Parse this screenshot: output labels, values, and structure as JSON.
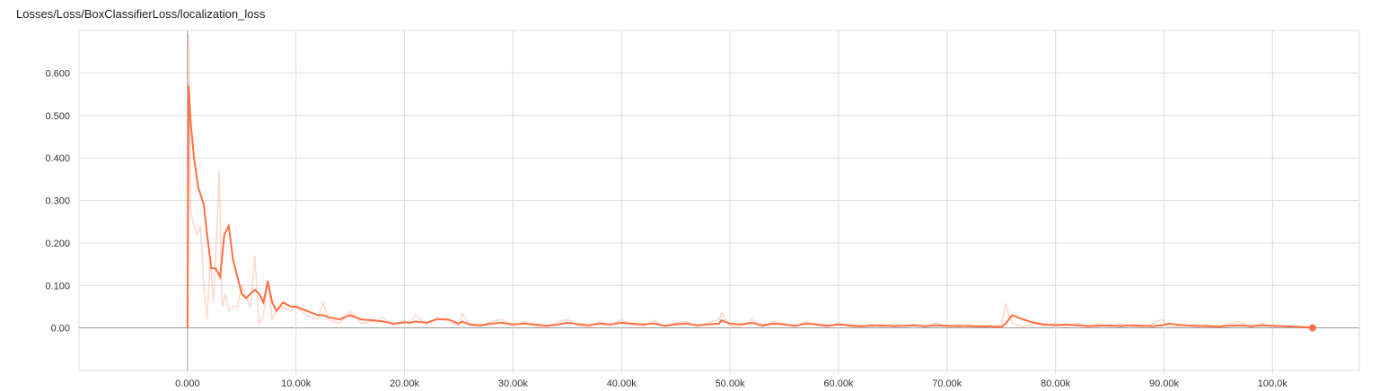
{
  "chart_data": {
    "type": "line",
    "title": "Losses/Loss/BoxClassifierLoss/localization_loss",
    "xlabel": "",
    "ylabel": "",
    "xlim": [
      -10000,
      108000
    ],
    "ylim": [
      -0.1,
      0.7
    ],
    "x_ticks": [
      0,
      10000,
      20000,
      30000,
      40000,
      50000,
      60000,
      70000,
      80000,
      90000,
      100000
    ],
    "x_tick_labels": [
      "0.000",
      "10.00k",
      "20.00k",
      "30.00k",
      "40.00k",
      "50.00k",
      "60.00k",
      "70.00k",
      "80.00k",
      "90.00k",
      "100.0k"
    ],
    "y_ticks": [
      0,
      0.1,
      0.2,
      0.3,
      0.4,
      0.5,
      0.6
    ],
    "y_tick_labels": [
      "0.00",
      "0.100",
      "0.200",
      "0.300",
      "0.400",
      "0.500",
      "0.600"
    ],
    "grid": true,
    "color": "#ff7043",
    "series": [
      {
        "values_type": "smoothed",
        "x": [
          0,
          100,
          300,
          600,
          1000,
          1500,
          1800,
          2200,
          2600,
          3000,
          3400,
          3800,
          4200,
          4600,
          5000,
          5400,
          5800,
          6200,
          6600,
          7000,
          7400,
          7800,
          8200,
          8800,
          9500,
          10000,
          11000,
          12000,
          12500,
          13000,
          14000,
          15000,
          16000,
          17000,
          18000,
          19000,
          20000,
          20500,
          21000,
          22000,
          23000,
          24000,
          25000,
          25300,
          26000,
          27000,
          28000,
          29000,
          30000,
          31000,
          32000,
          33000,
          34000,
          35000,
          36000,
          37000,
          38000,
          39000,
          40000,
          41000,
          42000,
          43000,
          44000,
          45000,
          46000,
          47000,
          48000,
          49000,
          49200,
          50000,
          51000,
          52000,
          53000,
          54000,
          55000,
          56000,
          57000,
          58000,
          59000,
          60000,
          61000,
          62000,
          63000,
          64000,
          65000,
          66000,
          67000,
          68000,
          69000,
          70000,
          71000,
          72000,
          73000,
          74000,
          75000,
          75400,
          76000,
          77000,
          78000,
          79000,
          80000,
          81000,
          82000,
          83000,
          84000,
          85000,
          86000,
          87000,
          88000,
          89000,
          89800,
          90500,
          91000,
          92000,
          93000,
          94000,
          95000,
          96000,
          97000,
          98000,
          99000,
          100000,
          101000,
          102000,
          103000,
          103700
        ],
        "values": [
          0.0,
          0.57,
          0.48,
          0.4,
          0.33,
          0.29,
          0.22,
          0.14,
          0.14,
          0.12,
          0.22,
          0.24,
          0.16,
          0.12,
          0.08,
          0.07,
          0.08,
          0.09,
          0.08,
          0.06,
          0.11,
          0.06,
          0.04,
          0.06,
          0.05,
          0.05,
          0.04,
          0.03,
          0.03,
          0.025,
          0.02,
          0.03,
          0.02,
          0.018,
          0.015,
          0.01,
          0.013,
          0.012,
          0.015,
          0.012,
          0.02,
          0.02,
          0.01,
          0.015,
          0.008,
          0.006,
          0.01,
          0.012,
          0.008,
          0.01,
          0.008,
          0.005,
          0.007,
          0.012,
          0.009,
          0.006,
          0.01,
          0.008,
          0.012,
          0.01,
          0.008,
          0.01,
          0.005,
          0.008,
          0.01,
          0.006,
          0.008,
          0.01,
          0.018,
          0.01,
          0.008,
          0.012,
          0.006,
          0.01,
          0.008,
          0.005,
          0.01,
          0.008,
          0.005,
          0.008,
          0.006,
          0.004,
          0.005,
          0.006,
          0.004,
          0.005,
          0.006,
          0.004,
          0.006,
          0.005,
          0.004,
          0.005,
          0.003,
          0.004,
          0.002,
          0.01,
          0.03,
          0.02,
          0.012,
          0.008,
          0.006,
          0.008,
          0.006,
          0.004,
          0.005,
          0.006,
          0.004,
          0.006,
          0.005,
          0.004,
          0.006,
          0.01,
          0.008,
          0.006,
          0.005,
          0.004,
          0.003,
          0.005,
          0.006,
          0.004,
          0.006,
          0.005,
          0.004,
          0.003,
          0.002,
          0.0
        ]
      },
      {
        "values_type": "raw",
        "x": [
          0,
          100,
          300,
          600,
          900,
          1200,
          1500,
          1800,
          2100,
          2400,
          2700,
          2900,
          3200,
          3500,
          3800,
          4200,
          4600,
          5000,
          5400,
          5800,
          6200,
          6600,
          7000,
          7400,
          7800,
          8200,
          8800,
          9500,
          10000,
          11000,
          12000,
          12500,
          13000,
          14000,
          15000,
          16000,
          17000,
          18000,
          19000,
          20000,
          20500,
          21000,
          22000,
          23000,
          24000,
          25000,
          25300,
          26000,
          27000,
          28000,
          29000,
          30000,
          31000,
          32000,
          33000,
          34000,
          35000,
          36000,
          37000,
          38000,
          39000,
          40000,
          41000,
          42000,
          43000,
          44000,
          45000,
          46000,
          47000,
          48000,
          49000,
          49200,
          50000,
          51000,
          52000,
          53000,
          54000,
          55000,
          56000,
          57000,
          58000,
          59000,
          60000,
          61000,
          62000,
          63000,
          64000,
          65000,
          66000,
          67000,
          68000,
          69000,
          70000,
          71000,
          72000,
          73000,
          74000,
          75000,
          75400,
          76000,
          77000,
          78000,
          79000,
          80000,
          81000,
          82000,
          83000,
          84000,
          85000,
          86000,
          87000,
          88000,
          89000,
          89800,
          90500,
          91000,
          92000,
          93000,
          94000,
          95000,
          96000,
          97000,
          98000,
          99000,
          100000,
          101000,
          102000,
          103000,
          103700
        ],
        "values": [
          0.0,
          0.69,
          0.27,
          0.24,
          0.22,
          0.24,
          0.1,
          0.02,
          0.16,
          0.06,
          0.23,
          0.37,
          0.05,
          0.08,
          0.04,
          0.05,
          0.05,
          0.1,
          0.07,
          0.05,
          0.17,
          0.01,
          0.03,
          0.11,
          0.02,
          0.04,
          0.05,
          0.04,
          0.05,
          0.03,
          0.02,
          0.06,
          0.02,
          0.01,
          0.04,
          0.01,
          0.015,
          0.025,
          0.005,
          0.018,
          0.01,
          0.03,
          0.008,
          0.025,
          0.015,
          0.005,
          0.035,
          0.006,
          0.003,
          0.015,
          0.02,
          0.004,
          0.015,
          0.003,
          0.001,
          0.012,
          0.02,
          0.005,
          0.002,
          0.015,
          0.005,
          0.02,
          0.006,
          0.003,
          0.018,
          0.002,
          0.012,
          0.015,
          0.003,
          0.012,
          0.02,
          0.035,
          0.004,
          0.003,
          0.02,
          0.002,
          0.015,
          0.01,
          0.002,
          0.015,
          0.006,
          0.002,
          0.012,
          0.003,
          0.001,
          0.008,
          0.002,
          0.01,
          0.003,
          0.008,
          0.002,
          0.012,
          0.001,
          0.008,
          0.001,
          0.007,
          0.0,
          0.006,
          0.055,
          0.01,
          0.003,
          0.01,
          0.004,
          0.012,
          0.001,
          0.012,
          0.002,
          0.01,
          0.001,
          0.01,
          0.004,
          0.002,
          0.01,
          0.02,
          0.003,
          0.002,
          0.006,
          0.001,
          0.008,
          0.002,
          0.01,
          0.015,
          0.001,
          0.01,
          0.002,
          0.005,
          0.001,
          0.002,
          0.0
        ]
      }
    ]
  }
}
